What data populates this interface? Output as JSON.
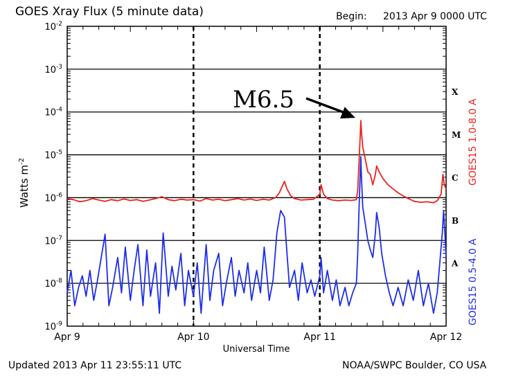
{
  "chart_data": {
    "type": "line",
    "title": "GOES Xray Flux (5 minute data)",
    "begin_label": "Begin:",
    "begin_value": "2013 Apr 9 0000 UTC",
    "xlabel": "Universal Time",
    "ylabel": "Watts m",
    "ylabel_sup": "-2",
    "y_scale": "log",
    "ylim": [
      1e-09,
      0.01
    ],
    "xlim_days": [
      0,
      3
    ],
    "x_ticks": [
      {
        "label": "Apr 9",
        "day": 0
      },
      {
        "label": "Apr 10",
        "day": 1
      },
      {
        "label": "Apr 11",
        "day": 2
      },
      {
        "label": "Apr 12",
        "day": 3
      }
    ],
    "y_ticks": [
      {
        "base": "10",
        "exp": "-2",
        "value": 0.01
      },
      {
        "base": "10",
        "exp": "-3",
        "value": 0.001
      },
      {
        "base": "10",
        "exp": "-4",
        "value": 0.0001
      },
      {
        "base": "10",
        "exp": "-5",
        "value": 1e-05
      },
      {
        "base": "10",
        "exp": "-6",
        "value": 1e-06
      },
      {
        "base": "10",
        "exp": "-7",
        "value": 1e-07
      },
      {
        "base": "10",
        "exp": "-8",
        "value": 1e-08
      },
      {
        "base": "10",
        "exp": "-9",
        "value": 1e-09
      }
    ],
    "flare_classes": [
      {
        "label": "X",
        "value": 0.0003
      },
      {
        "label": "M",
        "value": 3e-05
      },
      {
        "label": "C",
        "value": 3e-06
      },
      {
        "label": "B",
        "value": 3e-07
      },
      {
        "label": "A",
        "value": 3e-08
      }
    ],
    "grid": true,
    "series": [
      {
        "name": "GOES15 1.0-8.0 A",
        "color": "#e8231c",
        "points": [
          [
            0.0,
            9.5e-07
          ],
          [
            0.05,
            9e-07
          ],
          [
            0.1,
            8e-07
          ],
          [
            0.15,
            8.5e-07
          ],
          [
            0.2,
            9.5e-07
          ],
          [
            0.25,
            8.8e-07
          ],
          [
            0.3,
            8.2e-07
          ],
          [
            0.35,
            9e-07
          ],
          [
            0.4,
            8.5e-07
          ],
          [
            0.45,
            9.3e-07
          ],
          [
            0.5,
            8.6e-07
          ],
          [
            0.55,
            9e-07
          ],
          [
            0.6,
            8.2e-07
          ],
          [
            0.65,
            8.8e-07
          ],
          [
            0.7,
            9.5e-07
          ],
          [
            0.75,
            1.05e-06
          ],
          [
            0.8,
            9e-07
          ],
          [
            0.85,
            8.5e-07
          ],
          [
            0.9,
            9.2e-07
          ],
          [
            0.95,
            8.8e-07
          ],
          [
            1.0,
            9e-07
          ],
          [
            1.05,
            8.3e-07
          ],
          [
            1.1,
            9.5e-07
          ],
          [
            1.15,
            8.8e-07
          ],
          [
            1.2,
            9.2e-07
          ],
          [
            1.25,
            8.5e-07
          ],
          [
            1.3,
            9e-07
          ],
          [
            1.35,
            9.5e-07
          ],
          [
            1.4,
            8.8e-07
          ],
          [
            1.45,
            9.3e-07
          ],
          [
            1.5,
            8.6e-07
          ],
          [
            1.55,
            9.2e-07
          ],
          [
            1.6,
            8.8e-07
          ],
          [
            1.65,
            1e-06
          ],
          [
            1.68,
            1.3e-06
          ],
          [
            1.72,
            2.4e-06
          ],
          [
            1.74,
            1.6e-06
          ],
          [
            1.77,
            1.1e-06
          ],
          [
            1.8,
            9.5e-07
          ],
          [
            1.85,
            8.8e-07
          ],
          [
            1.9,
            9e-07
          ],
          [
            1.95,
            9.2e-07
          ],
          [
            2.0,
            1.2e-06
          ],
          [
            2.01,
            2e-06
          ],
          [
            2.03,
            1.2e-06
          ],
          [
            2.06,
            9.5e-07
          ],
          [
            2.1,
            8.8e-07
          ],
          [
            2.15,
            8.5e-07
          ],
          [
            2.2,
            8.8e-07
          ],
          [
            2.25,
            8.6e-07
          ],
          [
            2.29,
            9e-07
          ],
          [
            2.3,
            1.5e-06
          ],
          [
            2.31,
            6e-06
          ],
          [
            2.32,
            2.8e-05
          ],
          [
            2.325,
            6.3e-05
          ],
          [
            2.33,
            3.5e-05
          ],
          [
            2.34,
            1.5e-05
          ],
          [
            2.36,
            8e-06
          ],
          [
            2.38,
            4e-06
          ],
          [
            2.4,
            3.5e-06
          ],
          [
            2.42,
            2e-06
          ],
          [
            2.44,
            3.5e-06
          ],
          [
            2.45,
            5.5e-06
          ],
          [
            2.47,
            4e-06
          ],
          [
            2.5,
            2.8e-06
          ],
          [
            2.54,
            2e-06
          ],
          [
            2.58,
            1.6e-06
          ],
          [
            2.62,
            1.3e-06
          ],
          [
            2.66,
            1.1e-06
          ],
          [
            2.7,
            9.5e-07
          ],
          [
            2.75,
            8.2e-07
          ],
          [
            2.8,
            7.8e-07
          ],
          [
            2.85,
            8e-07
          ],
          [
            2.9,
            7.6e-07
          ],
          [
            2.93,
            8.5e-07
          ],
          [
            2.96,
            1.2e-06
          ],
          [
            2.975,
            3.5e-06
          ],
          [
            2.985,
            2e-06
          ],
          [
            3.0,
            1.6e-06
          ]
        ]
      },
      {
        "name": "GOES15 0.5-4.0 A",
        "color": "#1c2ee8",
        "points": [
          [
            0.0,
            6e-09
          ],
          [
            0.03,
            2e-08
          ],
          [
            0.06,
            3e-09
          ],
          [
            0.09,
            8e-09
          ],
          [
            0.12,
            1.5e-08
          ],
          [
            0.15,
            5e-09
          ],
          [
            0.18,
            2e-08
          ],
          [
            0.21,
            4e-09
          ],
          [
            0.24,
            1.2e-08
          ],
          [
            0.3,
            1.4e-07
          ],
          [
            0.33,
            3e-09
          ],
          [
            0.36,
            8e-09
          ],
          [
            0.4,
            4e-08
          ],
          [
            0.43,
            6e-09
          ],
          [
            0.46,
            7e-08
          ],
          [
            0.5,
            4e-09
          ],
          [
            0.53,
            2e-08
          ],
          [
            0.56,
            8e-08
          ],
          [
            0.6,
            3e-09
          ],
          [
            0.63,
            6e-08
          ],
          [
            0.66,
            5e-09
          ],
          [
            0.7,
            3e-08
          ],
          [
            0.73,
            2e-09
          ],
          [
            0.76,
            1.5e-07
          ],
          [
            0.8,
            5e-09
          ],
          [
            0.83,
            2.5e-08
          ],
          [
            0.86,
            7e-09
          ],
          [
            0.9,
            5e-08
          ],
          [
            0.93,
            3e-09
          ],
          [
            0.96,
            2e-08
          ],
          [
            1.0,
            5e-09
          ],
          [
            1.03,
            3e-08
          ],
          [
            1.06,
            2e-09
          ],
          [
            1.1,
            8e-08
          ],
          [
            1.13,
            4e-09
          ],
          [
            1.16,
            2e-08
          ],
          [
            1.2,
            5e-08
          ],
          [
            1.23,
            3e-09
          ],
          [
            1.26,
            1e-08
          ],
          [
            1.3,
            4e-08
          ],
          [
            1.33,
            5e-09
          ],
          [
            1.36,
            2e-08
          ],
          [
            1.4,
            6e-09
          ],
          [
            1.43,
            3e-08
          ],
          [
            1.46,
            4e-09
          ],
          [
            1.5,
            2e-08
          ],
          [
            1.53,
            6e-09
          ],
          [
            1.56,
            7e-08
          ],
          [
            1.6,
            4e-09
          ],
          [
            1.63,
            1.2e-08
          ],
          [
            1.66,
            1.5e-07
          ],
          [
            1.69,
            5e-07
          ],
          [
            1.72,
            3.5e-07
          ],
          [
            1.74,
            5e-08
          ],
          [
            1.76,
            8e-09
          ],
          [
            1.8,
            2e-08
          ],
          [
            1.83,
            4e-09
          ],
          [
            1.86,
            3e-08
          ],
          [
            1.9,
            6e-09
          ],
          [
            1.93,
            1.2e-08
          ],
          [
            1.96,
            5e-09
          ],
          [
            2.0,
            1.5e-08
          ],
          [
            2.01,
            4e-08
          ],
          [
            2.03,
            6e-09
          ],
          [
            2.06,
            2e-08
          ],
          [
            2.1,
            4e-09
          ],
          [
            2.13,
            1.2e-08
          ],
          [
            2.16,
            3e-09
          ],
          [
            2.2,
            8e-09
          ],
          [
            2.23,
            3e-09
          ],
          [
            2.26,
            6e-09
          ],
          [
            2.29,
            1e-08
          ],
          [
            2.3,
            5e-08
          ],
          [
            2.31,
            5e-07
          ],
          [
            2.32,
            3.5e-06
          ],
          [
            2.325,
            9e-06
          ],
          [
            2.33,
            3e-06
          ],
          [
            2.34,
            6e-07
          ],
          [
            2.36,
            2.5e-07
          ],
          [
            2.38,
            1e-07
          ],
          [
            2.4,
            6e-08
          ],
          [
            2.42,
            4e-08
          ],
          [
            2.44,
            1.5e-07
          ],
          [
            2.45,
            4.5e-07
          ],
          [
            2.47,
            2e-07
          ],
          [
            2.49,
            5e-08
          ],
          [
            2.52,
            1.5e-08
          ],
          [
            2.55,
            6e-09
          ],
          [
            2.58,
            3e-09
          ],
          [
            2.62,
            8e-09
          ],
          [
            2.66,
            3e-09
          ],
          [
            2.7,
            1.2e-08
          ],
          [
            2.74,
            4e-09
          ],
          [
            2.78,
            2e-08
          ],
          [
            2.82,
            3e-09
          ],
          [
            2.86,
            1e-08
          ],
          [
            2.9,
            2e-09
          ],
          [
            2.93,
            6e-09
          ],
          [
            2.95,
            3e-08
          ],
          [
            2.97,
            1.5e-07
          ],
          [
            2.98,
            5e-07
          ],
          [
            2.99,
            1.5e-07
          ],
          [
            3.0,
            4e-08
          ]
        ]
      }
    ],
    "annotations": [
      {
        "text": "M6.5",
        "arrow_to_day": 2.325,
        "arrow_to_value": 6.3e-05
      }
    ]
  },
  "footer": {
    "updated": "Updated 2013 Apr 11 23:55:11 UTC",
    "credit": "NOAA/SWPC Boulder, CO USA"
  }
}
